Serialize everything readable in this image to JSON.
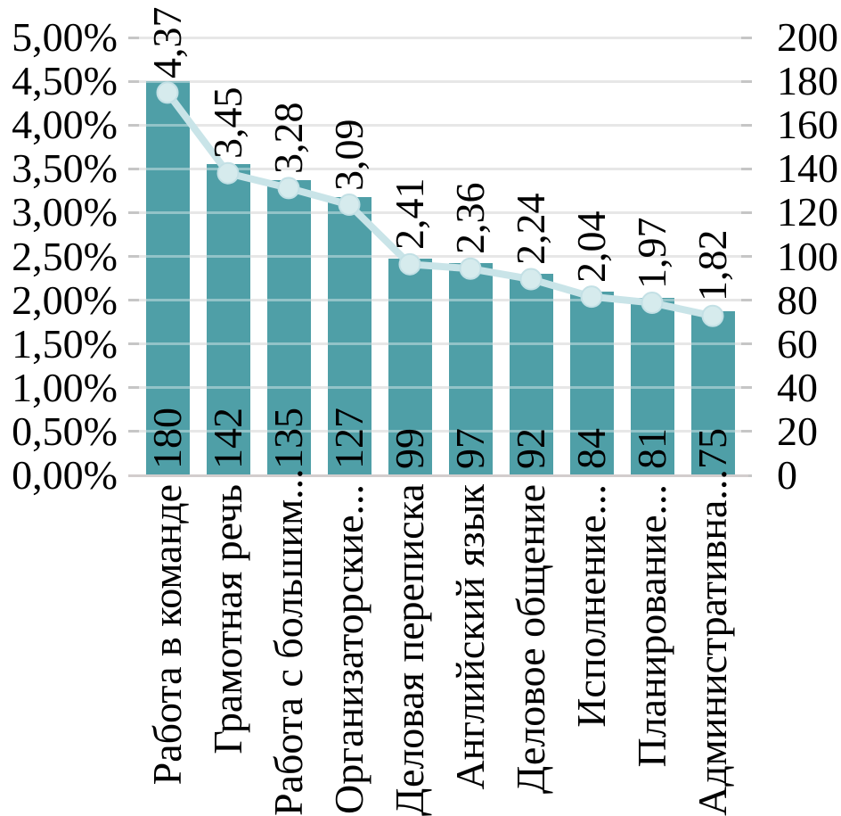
{
  "chart_data": {
    "type": "combo",
    "title": "",
    "legend": "none",
    "grid": true,
    "categories": [
      "Работа в команде",
      "Грамотная речь",
      "Работа с большим...",
      "Организаторские...",
      "Деловая переписка",
      "Английский язык",
      "Деловое общение",
      "Исполнение...",
      "Планирование...",
      "Административна..."
    ],
    "series": [
      {
        "name": "bar-counts",
        "type": "bar",
        "axis": "right",
        "values": [
          180,
          142,
          135,
          127,
          99,
          97,
          92,
          84,
          81,
          75
        ],
        "labels": [
          "180",
          "142",
          "135",
          "127",
          "99",
          "97",
          "92",
          "84",
          "81",
          "75"
        ]
      },
      {
        "name": "line-percent",
        "type": "line",
        "axis": "left",
        "values": [
          4.37,
          3.45,
          3.28,
          3.09,
          2.41,
          2.36,
          2.24,
          2.04,
          1.97,
          1.82
        ],
        "labels": [
          "4,37",
          "3,45",
          "3,28",
          "3,09",
          "2,41",
          "2,36",
          "2,24",
          "2,04",
          "1,97",
          "1,82"
        ]
      }
    ],
    "left_axis": {
      "min": 0,
      "max": 5,
      "step": 0.5,
      "ticks": [
        "5,00%",
        "4,50%",
        "4,00%",
        "3,50%",
        "3,00%",
        "2,50%",
        "2,00%",
        "1,50%",
        "1,00%",
        "0,50%",
        "0,00%"
      ]
    },
    "right_axis": {
      "min": 0,
      "max": 200,
      "step": 20,
      "ticks": [
        "200",
        "180",
        "160",
        "140",
        "120",
        "100",
        "80",
        "60",
        "40",
        "20",
        "0"
      ]
    },
    "colors": {
      "bar": "#4F9FA7",
      "line": "#C9E4E8",
      "marker": "#D6EBED",
      "marker_edge": "#C3E0E5",
      "gridline": "#D9D9D9",
      "axis_line": "#D2CDCD",
      "tick": "#C6C6C6",
      "text": "#000000"
    }
  }
}
